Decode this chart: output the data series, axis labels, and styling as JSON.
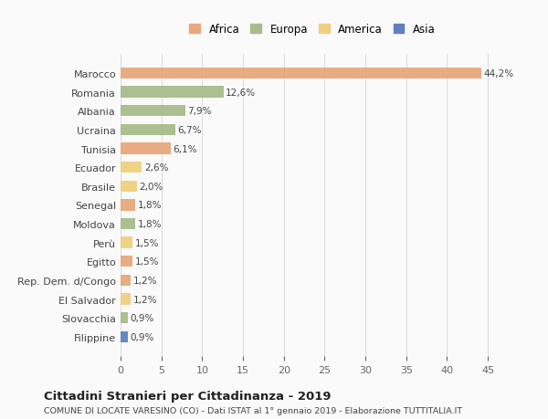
{
  "countries": [
    "Marocco",
    "Romania",
    "Albania",
    "Ucraina",
    "Tunisia",
    "Ecuador",
    "Brasile",
    "Senegal",
    "Moldova",
    "Perù",
    "Egitto",
    "Rep. Dem. d/Congo",
    "El Salvador",
    "Slovacchia",
    "Filippine"
  ],
  "values": [
    44.2,
    12.6,
    7.9,
    6.7,
    6.1,
    2.6,
    2.0,
    1.8,
    1.8,
    1.5,
    1.5,
    1.2,
    1.2,
    0.9,
    0.9
  ],
  "labels": [
    "44,2%",
    "12,6%",
    "7,9%",
    "6,7%",
    "6,1%",
    "2,6%",
    "2,0%",
    "1,8%",
    "1,8%",
    "1,5%",
    "1,5%",
    "1,2%",
    "1,2%",
    "0,9%",
    "0,9%"
  ],
  "continents": [
    "Africa",
    "Europa",
    "Europa",
    "Europa",
    "Africa",
    "America",
    "America",
    "Africa",
    "Europa",
    "America",
    "Africa",
    "Africa",
    "America",
    "Europa",
    "Asia"
  ],
  "colors": {
    "Africa": "#E8A87C",
    "Europa": "#A8BC8C",
    "America": "#F0D080",
    "Asia": "#6080C0"
  },
  "legend_labels": [
    "Africa",
    "Europa",
    "America",
    "Asia"
  ],
  "title": "Cittadini Stranieri per Cittadinanza - 2019",
  "subtitle": "COMUNE DI LOCATE VARESINO (CO) - Dati ISTAT al 1° gennaio 2019 - Elaborazione TUTTITALIA.IT",
  "xlim": [
    0,
    47
  ],
  "xticks": [
    0,
    5,
    10,
    15,
    20,
    25,
    30,
    35,
    40,
    45
  ],
  "background_color": "#FAFAFA",
  "grid_color": "#DDDDDD"
}
